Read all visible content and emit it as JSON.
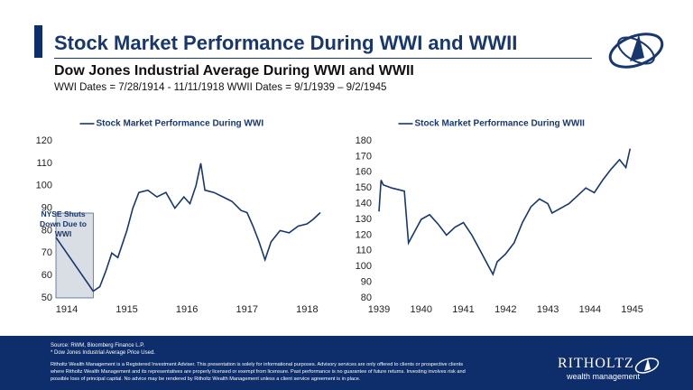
{
  "header": {
    "title": "Stock Market Performance During WWI and WWII",
    "subtitle": "Dow Jones Industrial Average During WWI and WWII",
    "dates": "WWI Dates = 7/28/1914 - 11/11/1918 WWII Dates = 9/1/1939 – 9/2/1945"
  },
  "chart_data": [
    {
      "type": "line",
      "x": [
        1913.82,
        1914.44,
        1914.55,
        1914.65,
        1914.75,
        1914.85,
        1915.0,
        1915.1,
        1915.2,
        1915.35,
        1915.5,
        1915.65,
        1915.8,
        1915.95,
        1916.05,
        1916.15,
        1916.23,
        1916.3,
        1916.45,
        1916.6,
        1916.75,
        1916.9,
        1917.0,
        1917.1,
        1917.2,
        1917.3,
        1917.4,
        1917.55,
        1917.7,
        1917.85,
        1918.0,
        1918.1,
        1918.22
      ],
      "series": [
        {
          "name": "Stock Market Performance During WWI",
          "color": "#17376e",
          "values": [
            77,
            53,
            55,
            62,
            70,
            68,
            80,
            90,
            97,
            98,
            95,
            97,
            90,
            95,
            92,
            100,
            110,
            98,
            97,
            95,
            93,
            89,
            88,
            82,
            75,
            67,
            75,
            80,
            79,
            82,
            83,
            85,
            88
          ]
        }
      ],
      "xlim": [
        1913.82,
        1918.22
      ],
      "xticks": [
        1914,
        1915,
        1916,
        1917,
        1918
      ],
      "ylim": [
        50,
        120
      ],
      "yticks": [
        50,
        60,
        70,
        80,
        90,
        100,
        110,
        120
      ],
      "annotation": "NYSE Shuts Down Due to WWI"
    },
    {
      "type": "line",
      "x": [
        1939.0,
        1939.05,
        1939.1,
        1939.3,
        1939.6,
        1939.7,
        1939.8,
        1940.0,
        1940.2,
        1940.4,
        1940.6,
        1940.8,
        1941.0,
        1941.2,
        1941.4,
        1941.6,
        1941.7,
        1941.8,
        1942.0,
        1942.2,
        1942.4,
        1942.6,
        1942.8,
        1943.0,
        1943.1,
        1943.3,
        1943.5,
        1943.7,
        1943.9,
        1944.1,
        1944.3,
        1944.5,
        1944.7,
        1944.85,
        1944.95
      ],
      "series": [
        {
          "name": "Stock Market Performance During WWII",
          "color": "#17376e",
          "values": [
            135,
            155,
            152,
            150,
            148,
            115,
            120,
            130,
            133,
            127,
            120,
            125,
            128,
            120,
            110,
            100,
            95,
            103,
            108,
            115,
            128,
            138,
            143,
            140,
            134,
            137,
            140,
            145,
            150,
            147,
            155,
            162,
            168,
            163,
            175
          ]
        }
      ],
      "xlim": [
        1939,
        1945.05
      ],
      "xticks": [
        1939,
        1940,
        1941,
        1942,
        1943,
        1944,
        1945
      ],
      "ylim": [
        80,
        180
      ],
      "yticks": [
        80,
        90,
        100,
        110,
        120,
        130,
        140,
        150,
        160,
        170,
        180
      ]
    }
  ],
  "footer": {
    "source": "Source: RWM, Bloomberg Finance L.P.",
    "note": "* Dow Jones Industrial Average Price Used.",
    "disclaimer": "Ritholtz Wealth Management is a Registered Investment Adviser. This presentation is solely for informational purposes. Advisory services are only offered to clients or prospective clients where Ritholtz Wealth Management and its representatives are properly licensed or exempt from licensure. Past performance is no guarantee of future returns. Investing involves risk and possible loss of principal capital. No advice may be rendered by Ritholtz Wealth Management unless a client service agreement is in place.",
    "logo": "RITHOLTZ",
    "logo_sub": "wealth management"
  }
}
